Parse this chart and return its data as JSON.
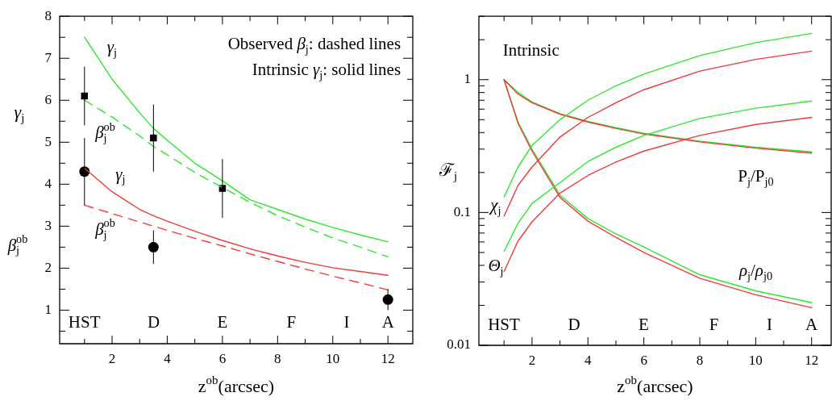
{
  "chart_data": [
    {
      "type": "line",
      "xlabel": "z$^{ob}$(arcsec)",
      "ylabel": "γ$_{j}$",
      "xlim": [
        0.1,
        12.9
      ],
      "ylim": [
        0.2,
        8
      ],
      "xticks": [
        {
          "value": 1,
          "label": null
        },
        2,
        {
          "value": 3,
          "label": null
        },
        4,
        {
          "value": 5,
          "label": null
        },
        6,
        {
          "value": 7,
          "label": null
        },
        8,
        {
          "value": 9,
          "label": null
        },
        10,
        {
          "value": 11,
          "label": null
        },
        12
      ],
      "yticks": [
        {
          "value": 0.5,
          "label": null
        },
        1,
        {
          "value": 1.5,
          "label": null
        },
        2,
        {
          "value": 2.5,
          "label": null
        },
        3,
        {
          "value": 3.5,
          "label": null
        },
        4,
        {
          "value": 4.5,
          "label": null
        },
        5,
        {
          "value": 5.5,
          "label": null
        },
        6,
        {
          "value": 6.5,
          "label": null
        },
        7,
        {
          "value": 7.5,
          "label": null
        },
        8
      ],
      "grid": false,
      "legend": false,
      "marker": "none",
      "x": [
        1,
        2,
        3,
        3.5,
        4,
        5,
        6,
        7,
        8,
        9,
        10,
        11,
        12
      ],
      "series": [
        {
          "color": "#2ee82e",
          "line_style": "solid",
          "values": [
            7.5,
            6.5,
            5.7,
            5.33,
            5.05,
            4.5,
            4.08,
            3.63,
            3.4,
            3.17,
            2.97,
            2.79,
            2.63
          ]
        },
        {
          "color": "#2ee82e",
          "line_style": "dashed",
          "values": [
            6.0,
            5.6,
            5.15,
            4.9,
            4.7,
            4.28,
            3.92,
            3.57,
            3.25,
            2.98,
            2.72,
            2.5,
            2.27
          ]
        },
        {
          "color": "#f03a3a",
          "line_style": "solid",
          "values": [
            4.38,
            3.82,
            3.4,
            3.25,
            3.12,
            2.88,
            2.66,
            2.46,
            2.29,
            2.14,
            2.01,
            1.92,
            1.83
          ]
        },
        {
          "color": "#f03a3a",
          "line_style": "dashed",
          "values": [
            3.5,
            3.3,
            3.1,
            3.0,
            2.9,
            2.71,
            2.53,
            2.34,
            2.16,
            1.98,
            1.81,
            1.65,
            1.48
          ]
        },
        {
          "type": "scatter",
          "color": "#000000",
          "marker": "square",
          "x": [
            1,
            3.5,
            6
          ],
          "values": [
            6.1,
            5.1,
            3.9
          ],
          "errors": [
            [
              5.4,
              6.8
            ],
            [
              4.3,
              5.9
            ],
            [
              3.2,
              4.6
            ]
          ]
        },
        {
          "type": "scatter",
          "color": "#000000",
          "marker": "circle",
          "x": [
            1,
            3.5,
            12
          ],
          "values": [
            4.3,
            2.5,
            1.25
          ],
          "errors": [
            [
              3.5,
              5.1
            ],
            [
              2.1,
              2.9
            ],
            [
              1.0,
              1.5
            ]
          ]
        }
      ],
      "annotations": [
        "Observed β$_{j}$: dashed lines",
        "Intrinsic γ$_{j}$: solid lines",
        "β$_{j}$$^{ob}$",
        "γ$_{j}$",
        "β$_{j}$$^{ob}$",
        "γ$_{j}$",
        "β$_{j}$$^{ob}$",
        "HST",
        "D",
        "E",
        "F",
        "I",
        "A"
      ]
    },
    {
      "type": "line",
      "xlabel": "z$^{ob}$(arcsec)",
      "ylabel": "ℱ$_{j}$",
      "log": "y",
      "xlim": [
        0.1,
        12.7
      ],
      "ylim": [
        0.01,
        3
      ],
      "xticks": [
        {
          "value": 1,
          "label": null
        },
        2,
        {
          "value": 3,
          "label": null
        },
        4,
        {
          "value": 5,
          "label": null
        },
        6,
        {
          "value": 7,
          "label": null
        },
        8,
        {
          "value": 9,
          "label": null
        },
        10,
        {
          "value": 11,
          "label": null
        },
        12
      ],
      "yticks": [
        0.01,
        {
          "value": 0.02,
          "label": null
        },
        {
          "value": 0.03,
          "label": null
        },
        {
          "value": 0.04,
          "label": null
        },
        {
          "value": 0.05,
          "label": null
        },
        {
          "value": 0.06,
          "label": null
        },
        {
          "value": 0.07,
          "label": null
        },
        {
          "value": 0.08,
          "label": null
        },
        {
          "value": 0.09,
          "label": null
        },
        0.1,
        {
          "value": 0.2,
          "label": null
        },
        {
          "value": 0.3,
          "label": null
        },
        {
          "value": 0.4,
          "label": null
        },
        {
          "value": 0.5,
          "label": null
        },
        {
          "value": 0.6,
          "label": null
        },
        {
          "value": 0.7,
          "label": null
        },
        {
          "value": 0.8,
          "label": null
        },
        {
          "value": 0.9,
          "label": null
        },
        1,
        {
          "value": 2,
          "label": null
        },
        {
          "value": 3,
          "label": null
        }
      ],
      "grid": false,
      "legend": false,
      "marker": "none",
      "line_style": "solid",
      "x": [
        1,
        1.5,
        2,
        3,
        4,
        5,
        6,
        8,
        10,
        12
      ],
      "series": [
        {
          "color": "#2ee82e",
          "values": [
            0.131,
            0.22,
            0.32,
            0.5,
            0.7,
            0.9,
            1.1,
            1.52,
            1.9,
            2.23
          ]
        },
        {
          "color": "#f03a3a",
          "values": [
            0.094,
            0.16,
            0.22,
            0.37,
            0.52,
            0.67,
            0.84,
            1.16,
            1.42,
            1.64
          ]
        },
        {
          "color": "#2ee82e",
          "values": [
            0.051,
            0.083,
            0.117,
            0.168,
            0.242,
            0.31,
            0.38,
            0.51,
            0.61,
            0.69
          ]
        },
        {
          "color": "#f03a3a",
          "values": [
            0.036,
            0.061,
            0.085,
            0.14,
            0.19,
            0.24,
            0.29,
            0.38,
            0.46,
            0.52
          ]
        },
        {
          "color": "#f03a3a",
          "values": [
            1,
            0.47,
            0.29,
            0.13,
            0.086,
            0.065,
            0.05,
            0.032,
            0.024,
            0.0192
          ]
        },
        {
          "color": "#2ee82e",
          "values": [
            1,
            0.48,
            0.3,
            0.135,
            0.09,
            0.069,
            0.055,
            0.034,
            0.0257,
            0.021
          ]
        },
        {
          "color": "#f03a3a",
          "values": [
            1,
            0.78,
            0.67,
            0.55,
            0.48,
            0.43,
            0.39,
            0.34,
            0.305,
            0.28
          ]
        },
        {
          "color": "#2ee82e",
          "values": [
            1,
            0.8,
            0.68,
            0.555,
            0.485,
            0.435,
            0.395,
            0.345,
            0.31,
            0.286
          ]
        }
      ],
      "annotations": [
        "Intrinsic",
        "χ$_{j}$",
        "Θ$_{j}$",
        "P$_{j}$/P$_{j0}$",
        "ρ$_{j}$/ρ$_{j0}$",
        "HST",
        "D",
        "E",
        "F",
        "I",
        "A"
      ]
    }
  ]
}
